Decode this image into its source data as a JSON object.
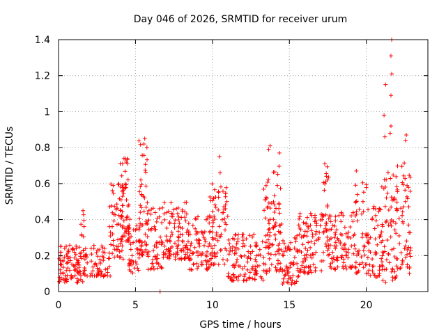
{
  "chart_data": {
    "type": "scatter",
    "title": "Day 046 of 2026, SRMTID for receiver urum",
    "xlabel": "GPS time / hours",
    "ylabel": "SRMTID / TECUs",
    "xlim": [
      0,
      24
    ],
    "ylim": [
      0,
      1.4
    ],
    "x_ticks": [
      0,
      5,
      10,
      15,
      20
    ],
    "x_tick_labels": [
      "0",
      "5",
      "10",
      "15",
      "20"
    ],
    "y_ticks": [
      0,
      0.2,
      0.4,
      0.6,
      0.8,
      1.0,
      1.2,
      1.4
    ],
    "y_tick_labels": [
      "0",
      "0.2",
      "0.4",
      "0.6",
      "0.8",
      "1",
      "1.2",
      "1.4"
    ],
    "grid": true,
    "marker": "+",
    "color": "#ff0000",
    "outliers": [
      {
        "x": 21.65,
        "y": 1.4
      },
      {
        "x": 21.6,
        "y": 1.31
      },
      {
        "x": 21.65,
        "y": 1.21
      },
      {
        "x": 21.25,
        "y": 1.15
      },
      {
        "x": 21.6,
        "y": 1.09
      },
      {
        "x": 21.15,
        "y": 0.98
      },
      {
        "x": 21.6,
        "y": 0.92
      },
      {
        "x": 21.55,
        "y": 0.88
      },
      {
        "x": 22.6,
        "y": 0.87
      },
      {
        "x": 21.2,
        "y": 0.86
      },
      {
        "x": 22.55,
        "y": 0.84
      },
      {
        "x": 5.6,
        "y": 0.85
      },
      {
        "x": 5.55,
        "y": 0.82
      },
      {
        "x": 13.75,
        "y": 0.81
      },
      {
        "x": 13.65,
        "y": 0.79
      },
      {
        "x": 14.35,
        "y": 0.77
      },
      {
        "x": 10.45,
        "y": 0.75
      },
      {
        "x": 4.25,
        "y": 0.74
      },
      {
        "x": 17.3,
        "y": 0.71
      },
      {
        "x": 19.35,
        "y": 0.67
      },
      {
        "x": 10.5,
        "y": 0.66
      },
      {
        "x": 22.8,
        "y": 0.1
      },
      {
        "x": 6.6,
        "y": 0.0
      }
    ],
    "clusters": [
      {
        "x0": 0.0,
        "x1": 1.6,
        "ymin": 0.05,
        "ymax": 0.26,
        "n": 95,
        "seed": 11
      },
      {
        "x0": 1.4,
        "x1": 1.7,
        "ymin": 0.3,
        "ymax": 0.45,
        "n": 8,
        "seed": 12
      },
      {
        "x0": 1.6,
        "x1": 3.4,
        "ymin": 0.08,
        "ymax": 0.26,
        "n": 70,
        "seed": 13
      },
      {
        "x0": 3.3,
        "x1": 4.2,
        "ymin": 0.18,
        "ymax": 0.6,
        "n": 55,
        "seed": 14
      },
      {
        "x0": 4.0,
        "x1": 4.6,
        "ymin": 0.28,
        "ymax": 0.74,
        "n": 55,
        "seed": 15
      },
      {
        "x0": 4.5,
        "x1": 5.3,
        "ymin": 0.1,
        "ymax": 0.42,
        "n": 40,
        "seed": 16
      },
      {
        "x0": 5.2,
        "x1": 5.8,
        "ymin": 0.2,
        "ymax": 0.84,
        "n": 55,
        "seed": 17
      },
      {
        "x0": 5.8,
        "x1": 6.8,
        "ymin": 0.12,
        "ymax": 0.48,
        "n": 50,
        "seed": 18
      },
      {
        "x0": 6.8,
        "x1": 8.5,
        "ymin": 0.18,
        "ymax": 0.5,
        "n": 110,
        "seed": 19
      },
      {
        "x0": 8.5,
        "x1": 9.8,
        "ymin": 0.12,
        "ymax": 0.42,
        "n": 70,
        "seed": 20
      },
      {
        "x0": 9.8,
        "x1": 11.0,
        "ymin": 0.15,
        "ymax": 0.6,
        "n": 80,
        "seed": 21
      },
      {
        "x0": 11.0,
        "x1": 13.3,
        "ymin": 0.06,
        "ymax": 0.32,
        "n": 110,
        "seed": 22
      },
      {
        "x0": 13.3,
        "x1": 14.5,
        "ymin": 0.1,
        "ymax": 0.7,
        "n": 95,
        "seed": 23
      },
      {
        "x0": 14.5,
        "x1": 15.6,
        "ymin": 0.04,
        "ymax": 0.32,
        "n": 60,
        "seed": 24
      },
      {
        "x0": 15.6,
        "x1": 17.2,
        "ymin": 0.1,
        "ymax": 0.44,
        "n": 90,
        "seed": 25
      },
      {
        "x0": 17.2,
        "x1": 17.6,
        "ymin": 0.2,
        "ymax": 0.7,
        "n": 30,
        "seed": 26
      },
      {
        "x0": 17.5,
        "x1": 19.2,
        "ymin": 0.12,
        "ymax": 0.44,
        "n": 90,
        "seed": 27
      },
      {
        "x0": 19.2,
        "x1": 20.1,
        "ymin": 0.1,
        "ymax": 0.62,
        "n": 50,
        "seed": 28
      },
      {
        "x0": 20.1,
        "x1": 21.1,
        "ymin": 0.08,
        "ymax": 0.48,
        "n": 60,
        "seed": 29
      },
      {
        "x0": 21.0,
        "x1": 22.0,
        "ymin": 0.05,
        "ymax": 0.7,
        "n": 60,
        "seed": 30
      },
      {
        "x0": 22.0,
        "x1": 22.9,
        "ymin": 0.12,
        "ymax": 0.74,
        "n": 55,
        "seed": 31
      }
    ]
  }
}
